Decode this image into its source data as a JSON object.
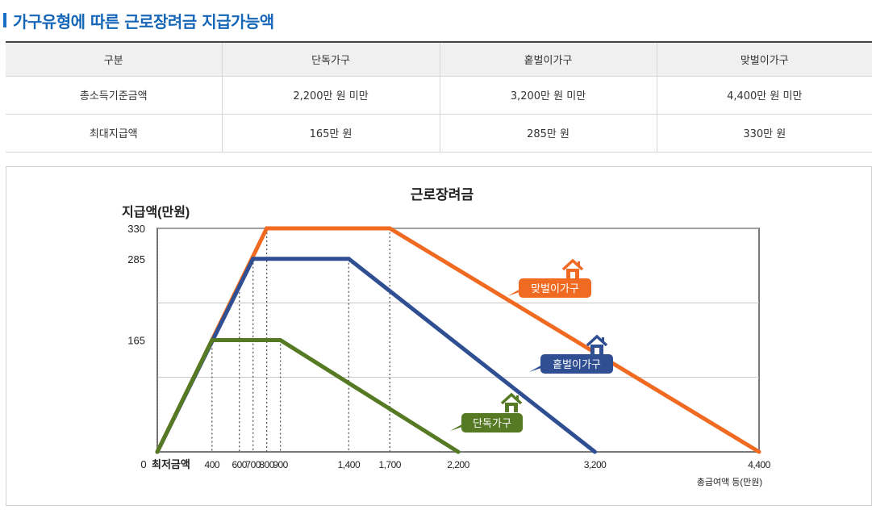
{
  "heading": "가구유형에 따른 근로장려금 지급가능액",
  "table": {
    "headers": [
      "구분",
      "단독가구",
      "홑벌이가구",
      "맞벌이가구"
    ],
    "rows": [
      [
        "총소득기준금액",
        "2,200만 원 미만",
        "3,200만 원 미만",
        "4,400만 원 미만"
      ],
      [
        "최대지급액",
        "165만 원",
        "285만 원",
        "330만 원"
      ]
    ]
  },
  "chart_data": {
    "type": "line",
    "title": "근로장려금",
    "ylabel": "지급액(만원)",
    "xlabel": "총급여액 등(만원)",
    "x_start_label": "최저금액",
    "xlim": [
      0,
      4400
    ],
    "ylim": [
      0,
      330
    ],
    "x_ticks": [
      {
        "value": 400,
        "label": "400"
      },
      {
        "value": 600,
        "label": "600"
      },
      {
        "value": 700,
        "label": "700"
      },
      {
        "value": 800,
        "label": "800"
      },
      {
        "value": 900,
        "label": "900"
      },
      {
        "value": 1400,
        "label": "1,400"
      },
      {
        "value": 1700,
        "label": "1,700"
      },
      {
        "value": 2200,
        "label": "2,200"
      },
      {
        "value": 3200,
        "label": "3,200"
      },
      {
        "value": 4400,
        "label": "4,400"
      }
    ],
    "y_ticks": [
      {
        "value": 0,
        "label": "0"
      },
      {
        "value": 165,
        "label": "165"
      },
      {
        "value": 285,
        "label": "285"
      },
      {
        "value": 330,
        "label": "330"
      }
    ],
    "gridlines_y": [
      110,
      220,
      330
    ],
    "grid": true,
    "series": [
      {
        "name": "맞벌이가구",
        "color": "#f06a22",
        "icon": "house-icon",
        "points": [
          [
            0,
            0
          ],
          [
            800,
            330
          ],
          [
            1700,
            330
          ],
          [
            4400,
            0
          ]
        ]
      },
      {
        "name": "홑벌이가구",
        "color": "#2f4f92",
        "icon": "house-icon",
        "points": [
          [
            0,
            0
          ],
          [
            700,
            285
          ],
          [
            1400,
            285
          ],
          [
            3200,
            0
          ]
        ]
      },
      {
        "name": "단독가구",
        "color": "#567a23",
        "icon": "house-icon",
        "points": [
          [
            0,
            0
          ],
          [
            400,
            165
          ],
          [
            900,
            165
          ],
          [
            2200,
            0
          ]
        ]
      }
    ]
  }
}
